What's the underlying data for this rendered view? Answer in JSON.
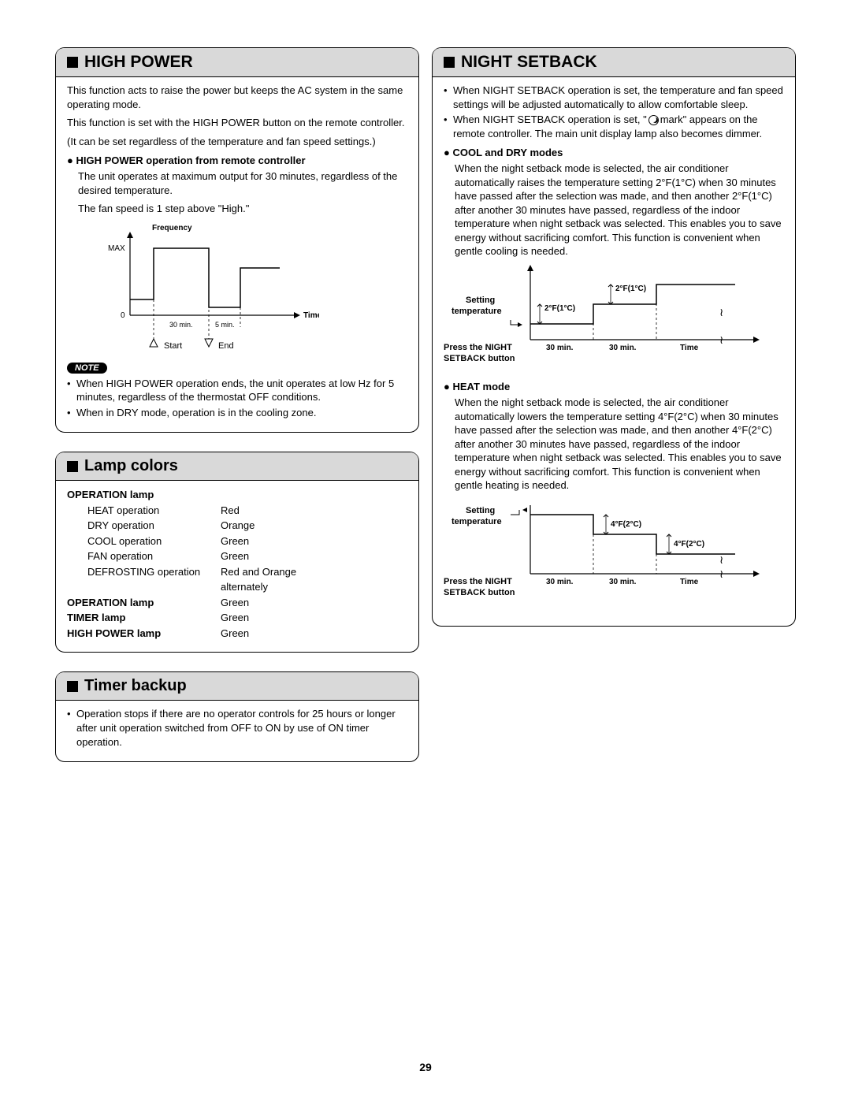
{
  "page_number": "29",
  "left": {
    "high_power": {
      "title": "HIGH POWER",
      "intro": [
        "This function acts to raise the power but keeps the AC system in the same operating mode.",
        "This function is set with the HIGH POWER button on the remote controller.",
        "(It can be set regardless of the temperature and fan speed settings.)"
      ],
      "sub1_heading": "HIGH POWER operation from remote controller",
      "sub1_text": [
        "The unit operates at maximum output for 30 minutes, regardless of the desired temperature.",
        "The fan speed is 1 step above \"High.\""
      ],
      "chart": {
        "y_label": "Frequency",
        "y_max_label": "MAX",
        "y_zero_label": "0",
        "x_label": "Time",
        "period1": "30 min.",
        "period2": "5 min.",
        "start_label": "Start",
        "end_label": "End"
      },
      "note_label": "NOTE",
      "notes": [
        "When HIGH POWER operation ends, the unit operates at low Hz for 5 minutes, regardless of the thermostat OFF conditions.",
        "When in DRY mode, operation is in the cooling zone."
      ]
    },
    "lamp_colors": {
      "title": "Lamp colors",
      "rows": [
        {
          "label": "OPERATION lamp",
          "value": "",
          "bold": true,
          "indent": false
        },
        {
          "label": "HEAT operation",
          "value": "Red",
          "bold": false,
          "indent": true
        },
        {
          "label": "DRY operation",
          "value": "Orange",
          "bold": false,
          "indent": true
        },
        {
          "label": "COOL operation",
          "value": "Green",
          "bold": false,
          "indent": true
        },
        {
          "label": "FAN operation",
          "value": "Green",
          "bold": false,
          "indent": true
        },
        {
          "label": "DEFROSTING operation",
          "value": "Red and Orange",
          "bold": false,
          "indent": true
        },
        {
          "label": "",
          "value": "alternately",
          "bold": false,
          "indent": true
        },
        {
          "label": "OPERATION lamp",
          "value": "Green",
          "bold": true,
          "indent": false
        },
        {
          "label": "TIMER lamp",
          "value": "Green",
          "bold": true,
          "indent": false
        },
        {
          "label": "HIGH POWER lamp",
          "value": "Green",
          "bold": true,
          "indent": false
        }
      ]
    },
    "timer_backup": {
      "title": "Timer backup",
      "bullets": [
        "Operation stops if there are no operator controls for 25 hours or longer after unit operation switched from OFF to ON by use of ON timer operation."
      ]
    }
  },
  "right": {
    "night_setback": {
      "title": "NIGHT SETBACK",
      "intro_bullets": [
        "When NIGHT SETBACK operation is set, the temperature and fan speed settings will be adjusted automatically to allow comfortable sleep.",
        "When NIGHT SETBACK operation is set, \" mark\" appears on the remote controller. The main unit display lamp also becomes dimmer."
      ],
      "cool_heading": "COOL and DRY modes",
      "cool_text": "When the night setback mode is selected, the air conditioner automatically raises the temperature setting 2°F(1°C) when 30 minutes have passed after the selection was made, and then another 2°F(1°C) after another 30 minutes have passed, regardless of the indoor temperature when night setback was selected. This enables you to save energy without sacrificing comfort. This function is convenient when gentle cooling is needed.",
      "cool_chart": {
        "y_left_label1": "Setting",
        "y_left_label2": "temperature",
        "press_label1": "Press the NIGHT",
        "press_label2": "SETBACK button",
        "step1": "2°F(1°C)",
        "step2": "2°F(1°C)",
        "period1": "30 min.",
        "period2": "30 min.",
        "x_label": "Time"
      },
      "heat_heading": "HEAT mode",
      "heat_text": "When the night setback mode is selected, the air conditioner automatically lowers the temperature setting 4°F(2°C) when 30 minutes have passed after the selection was made, and then another 4°F(2°C) after another 30 minutes have passed, regardless of the indoor temperature when night setback was selected. This enables you to save energy without sacrificing comfort. This function is convenient when gentle heating is needed.",
      "heat_chart": {
        "y_left_label1": "Setting",
        "y_left_label2": "temperature",
        "press_label1": "Press the NIGHT",
        "press_label2": "SETBACK button",
        "step1": "4°F(2°C)",
        "step2": "4°F(2°C)",
        "period1": "30 min.",
        "period2": "30 min.",
        "x_label": "Time"
      }
    }
  }
}
